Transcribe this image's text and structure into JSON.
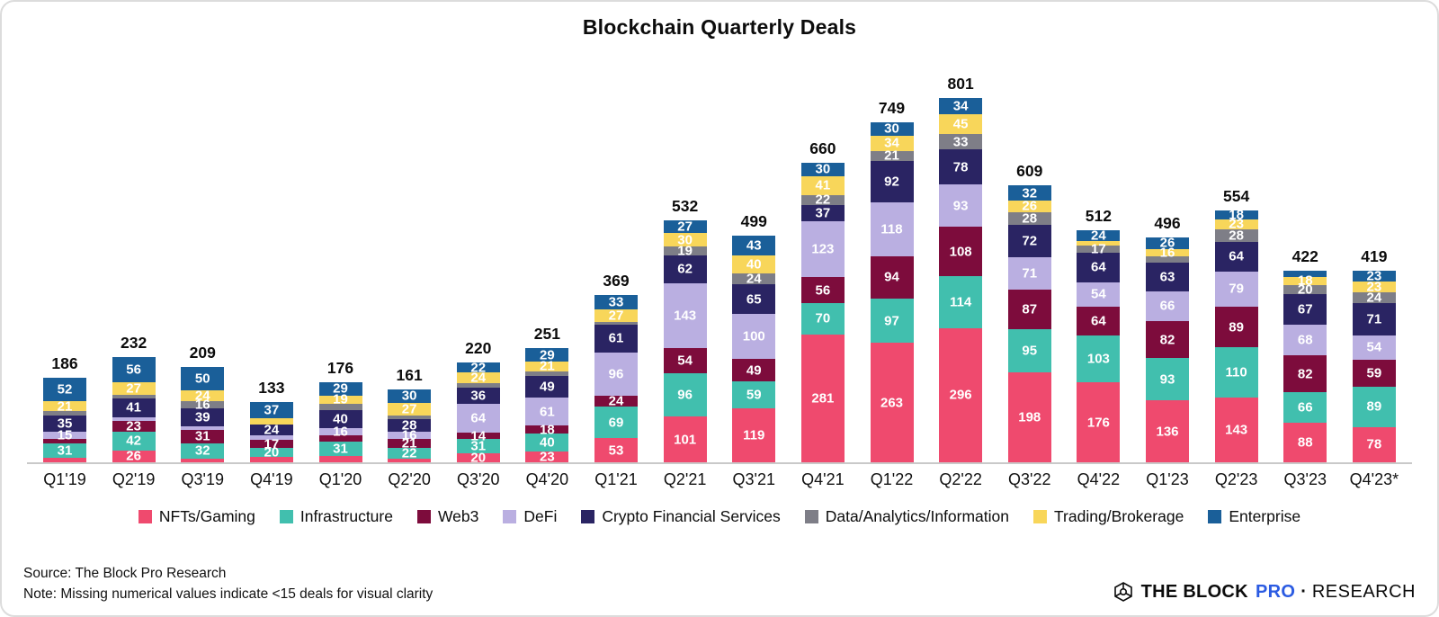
{
  "title": "Blockchain Quarterly Deals",
  "chart_data": {
    "type": "bar",
    "stacked": true,
    "legend_position": "bottom",
    "label_rule": "segment values hidden when <15 deals",
    "categories": [
      "Q1'19",
      "Q2'19",
      "Q3'19",
      "Q4'19",
      "Q1'20",
      "Q2'20",
      "Q3'20",
      "Q4'20",
      "Q1'21",
      "Q2'21",
      "Q3'21",
      "Q4'21",
      "Q1'22",
      "Q2'22",
      "Q3'22",
      "Q4'22",
      "Q1'23",
      "Q2'23",
      "Q3'23",
      "Q4'23*"
    ],
    "totals": [
      186,
      232,
      209,
      133,
      176,
      161,
      220,
      251,
      369,
      532,
      499,
      660,
      749,
      801,
      609,
      512,
      496,
      554,
      422,
      419
    ],
    "series": [
      {
        "name": "NFTs/Gaming",
        "color": "#EF4A6E",
        "values": [
          null,
          26,
          null,
          null,
          null,
          null,
          20,
          23,
          53,
          101,
          119,
          281,
          263,
          296,
          198,
          176,
          136,
          143,
          88,
          78
        ],
        "est": [
          10,
          null,
          9,
          12,
          14,
          9,
          null,
          null,
          null,
          null,
          null,
          null,
          null,
          null,
          null,
          null,
          null,
          null,
          null,
          null
        ]
      },
      {
        "name": "Infrastructure",
        "color": "#41BFAE",
        "values": [
          31,
          42,
          32,
          20,
          31,
          22,
          31,
          40,
          69,
          96,
          59,
          70,
          97,
          114,
          95,
          103,
          93,
          110,
          66,
          89
        ],
        "est": [
          null,
          null,
          null,
          null,
          null,
          null,
          null,
          null,
          null,
          null,
          null,
          null,
          null,
          null,
          null,
          null,
          null,
          null,
          null,
          null
        ]
      },
      {
        "name": "Web3",
        "color": "#7D0C3C",
        "values": [
          null,
          23,
          31,
          17,
          null,
          21,
          14,
          18,
          24,
          54,
          49,
          56,
          94,
          108,
          87,
          64,
          82,
          89,
          82,
          59
        ],
        "est": [
          11,
          null,
          null,
          null,
          14,
          null,
          null,
          null,
          null,
          null,
          null,
          null,
          null,
          null,
          null,
          null,
          null,
          null,
          null,
          null
        ]
      },
      {
        "name": "DeFi",
        "color": "#BAAFE1",
        "values": [
          15,
          null,
          null,
          null,
          16,
          16,
          64,
          61,
          96,
          143,
          100,
          123,
          118,
          93,
          71,
          54,
          66,
          79,
          68,
          54
        ],
        "est": [
          null,
          9,
          8,
          11,
          null,
          null,
          null,
          null,
          null,
          null,
          null,
          null,
          null,
          null,
          null,
          null,
          null,
          null,
          null,
          null
        ]
      },
      {
        "name": "Crypto Financial Services",
        "color": "#2A2463",
        "values": [
          35,
          41,
          39,
          24,
          40,
          28,
          36,
          49,
          61,
          62,
          65,
          37,
          92,
          78,
          72,
          64,
          63,
          64,
          67,
          71
        ],
        "est": [
          null,
          null,
          null,
          null,
          null,
          null,
          null,
          null,
          null,
          null,
          null,
          null,
          null,
          null,
          null,
          null,
          null,
          null,
          null,
          null
        ]
      },
      {
        "name": "Data/Analytics/Information",
        "color": "#7E7E87",
        "values": [
          null,
          null,
          16,
          null,
          null,
          null,
          null,
          null,
          null,
          19,
          24,
          22,
          21,
          33,
          28,
          17,
          null,
          28,
          20,
          24
        ],
        "est": [
          11,
          8,
          null,
          0,
          13,
          8,
          9,
          10,
          6,
          null,
          null,
          null,
          null,
          null,
          null,
          null,
          14,
          null,
          null,
          null
        ]
      },
      {
        "name": "Trading/Brokerage",
        "color": "#F8D65A",
        "values": [
          21,
          27,
          24,
          null,
          19,
          27,
          24,
          21,
          27,
          30,
          40,
          41,
          34,
          45,
          26,
          null,
          16,
          23,
          18,
          23
        ],
        "est": [
          null,
          null,
          null,
          12,
          null,
          null,
          null,
          null,
          null,
          null,
          null,
          null,
          null,
          null,
          null,
          10,
          null,
          null,
          null,
          null
        ]
      },
      {
        "name": "Enterprise",
        "color": "#1A5F99",
        "values": [
          52,
          56,
          50,
          37,
          29,
          30,
          22,
          29,
          33,
          27,
          43,
          30,
          30,
          34,
          32,
          24,
          26,
          18,
          null,
          23
        ],
        "est": [
          null,
          null,
          null,
          null,
          null,
          null,
          null,
          null,
          null,
          null,
          null,
          null,
          null,
          null,
          null,
          null,
          null,
          null,
          13,
          null
        ]
      }
    ]
  },
  "footer": {
    "source": "Source: The Block Pro Research",
    "note": "Note: Missing numerical values indicate <15 deals for visual clarity"
  },
  "brand": {
    "the_block": "THE BLOCK",
    "pro": "PRO",
    "dot": "·",
    "research": "RESEARCH",
    "pro_color": "#2B5BE2"
  }
}
